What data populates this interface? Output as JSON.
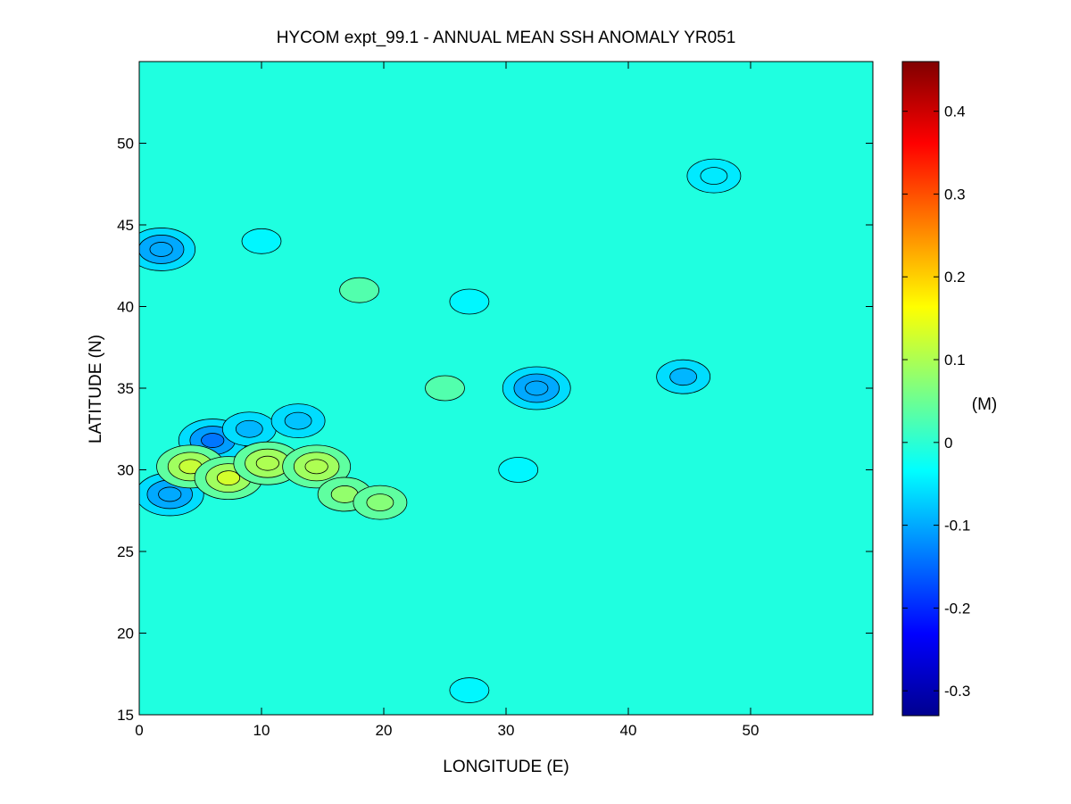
{
  "chart_data": {
    "type": "heatmap",
    "title": "HYCOM expt_99.1 - ANNUAL MEAN SSH ANOMALY YR051",
    "xlabel": "LONGITUDE (E)",
    "ylabel": "LATITUDE (N)",
    "xlim": [
      0,
      60
    ],
    "ylim": [
      15,
      55
    ],
    "xticks": [
      0,
      10,
      20,
      30,
      40,
      50
    ],
    "yticks": [
      15,
      20,
      25,
      30,
      35,
      40,
      45,
      50
    ],
    "colorbar": {
      "label": "(M)",
      "range": [
        -0.33,
        0.46
      ],
      "ticks": [
        0.4,
        0.3,
        0.2,
        0.1,
        0,
        -0.1,
        -0.2,
        -0.3
      ],
      "tick_labels": [
        "0.4",
        "0.3",
        "0.2",
        "0.1",
        "0",
        "-0.1",
        "-0.2",
        "-0.3"
      ],
      "colormap": "jet"
    },
    "background_value": -0.01,
    "contour_interval": 0.05,
    "features": [
      {
        "lon": 1.8,
        "lat": 43.5,
        "value": -0.1
      },
      {
        "lon": 6.0,
        "lat": 31.8,
        "value": -0.14
      },
      {
        "lon": 9.0,
        "lat": 32.5,
        "value": -0.09
      },
      {
        "lon": 13.0,
        "lat": 33.0,
        "value": -0.08
      },
      {
        "lon": 2.5,
        "lat": 28.5,
        "value": -0.1
      },
      {
        "lon": 4.2,
        "lat": 30.2,
        "value": 0.12
      },
      {
        "lon": 7.3,
        "lat": 29.5,
        "value": 0.13
      },
      {
        "lon": 10.5,
        "lat": 30.4,
        "value": 0.1
      },
      {
        "lon": 14.5,
        "lat": 30.2,
        "value": 0.1
      },
      {
        "lon": 16.8,
        "lat": 28.5,
        "value": 0.08
      },
      {
        "lon": 19.7,
        "lat": 28.0,
        "value": 0.07
      },
      {
        "lon": 32.5,
        "lat": 35.0,
        "value": -0.1
      },
      {
        "lon": 44.5,
        "lat": 35.7,
        "value": -0.09
      },
      {
        "lon": 27.0,
        "lat": 40.3,
        "value": -0.04
      },
      {
        "lon": 18.0,
        "lat": 41.0,
        "value": 0.03
      },
      {
        "lon": 25.0,
        "lat": 35.0,
        "value": 0.03
      },
      {
        "lon": 47.0,
        "lat": 48.0,
        "value": -0.05
      },
      {
        "lon": 27.0,
        "lat": 16.5,
        "value": -0.04
      },
      {
        "lon": 10.0,
        "lat": 44.0,
        "value": -0.04
      },
      {
        "lon": 31.0,
        "lat": 30.0,
        "value": -0.04
      }
    ]
  }
}
